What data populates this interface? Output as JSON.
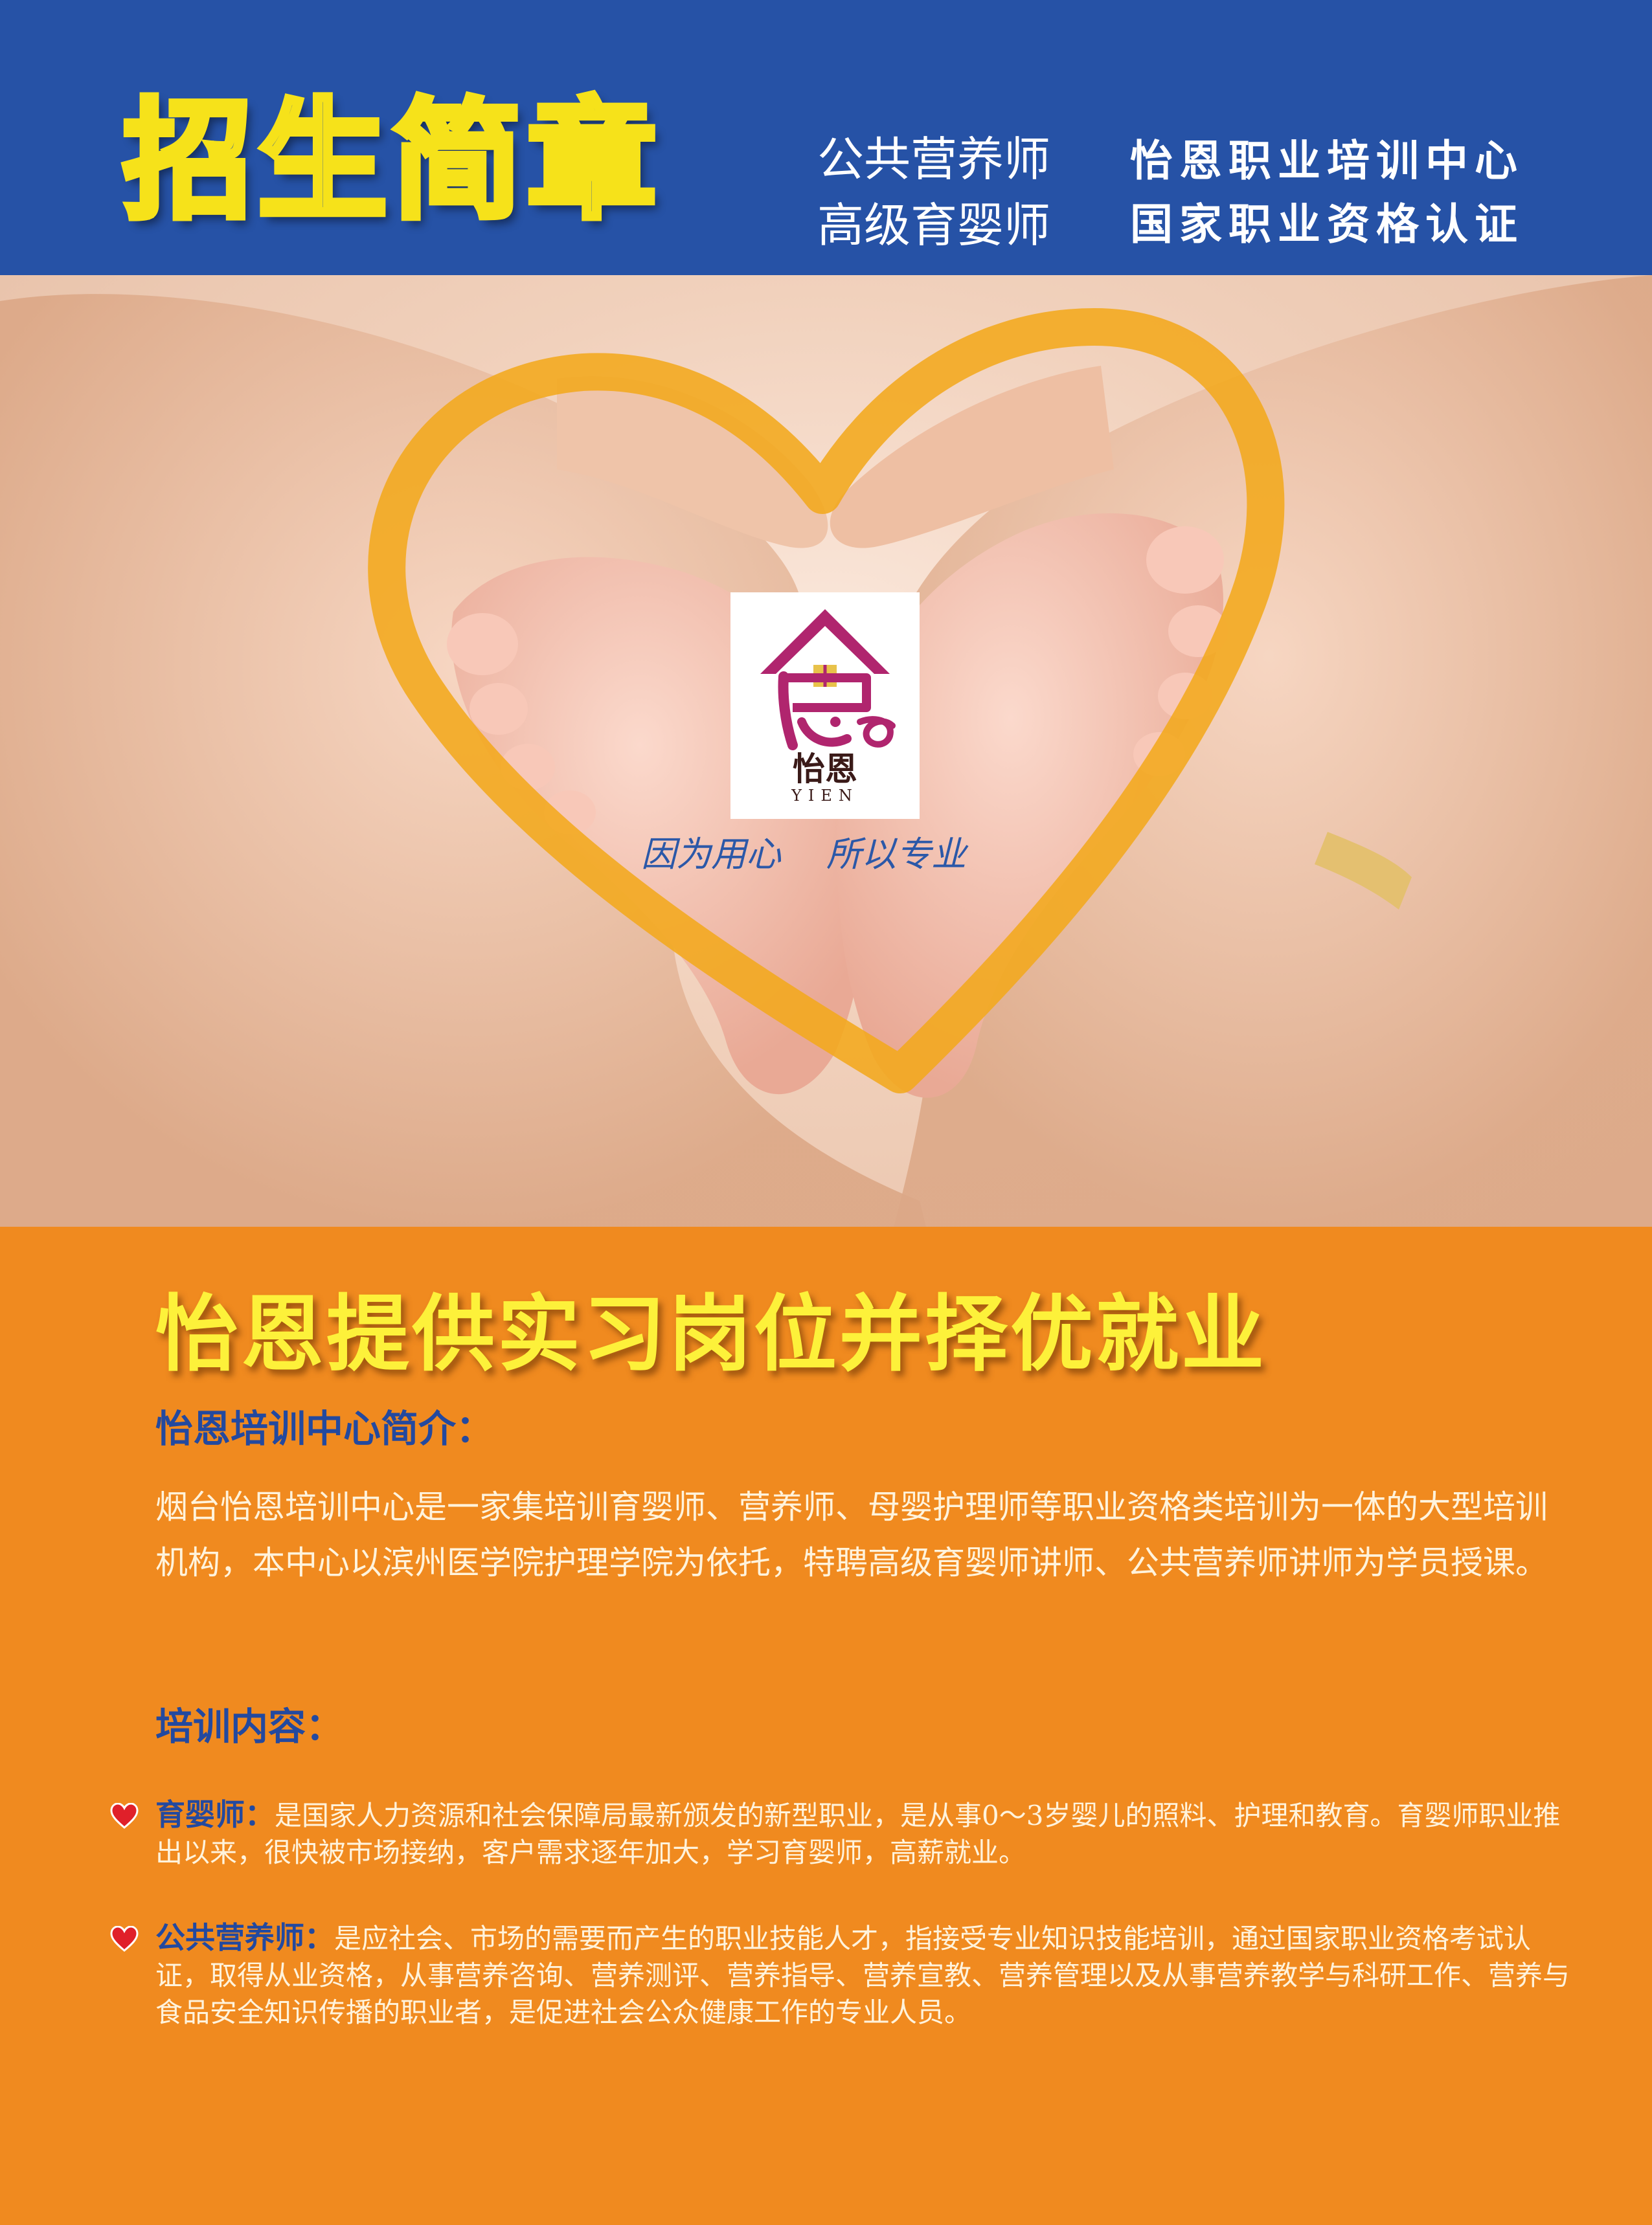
{
  "header": {
    "title": "招生简章",
    "courses": [
      "公共营养师",
      "高级育婴师"
    ],
    "org": [
      "怡恩职业培训中心",
      "国家职业资格认证"
    ]
  },
  "photo": {
    "logo_text_cn": "怡恩",
    "logo_text_en": "YIEN",
    "slogan": [
      "因为用心",
      "所以专业"
    ]
  },
  "main": {
    "promo": "怡恩提供实习岗位并择优就业",
    "intro_title": "怡恩培训中心简介：",
    "intro_text": "烟台怡恩培训中心是一家集培训育婴师、营养师、母婴护理师等职业资格类培训为一体的大型培训机构，本中心以滨州医学院护理学院为依托，特聘高级育婴师讲师、公共营养师讲师为学员授课。",
    "training_title": "培训内容：",
    "items": [
      {
        "label": "育婴师：",
        "text": "是国家人力资源和社会保障局最新颁发的新型职业，是从事0～3岁婴儿的照料、护理和教育。育婴师职业推出以来，很快被市场接纳，客户需求逐年加大，学习育婴师，高薪就业。"
      },
      {
        "label": "公共营养师：",
        "text": "是应社会、市场的需要而产生的职业技能人才，指接受专业知识技能培训，通过国家职业资格考试认证，取得从业资格，从事营养咨询、营养测评、营养指导、营养宣教、营养管理以及从事营养教学与科研工作、营养与食品安全知识传播的职业者，是促进社会公众健康工作的专业人员。"
      }
    ]
  },
  "colors": {
    "header_blue": "#2652a6",
    "title_yellow": "#f6e21a",
    "orange": "#f08a1f",
    "heart_outline": "#f2a91c",
    "logo_magenta": "#b0256e",
    "label_blue": "#23499f"
  },
  "icons": [
    "heart-bullet-icon",
    "house-roof-icon"
  ]
}
